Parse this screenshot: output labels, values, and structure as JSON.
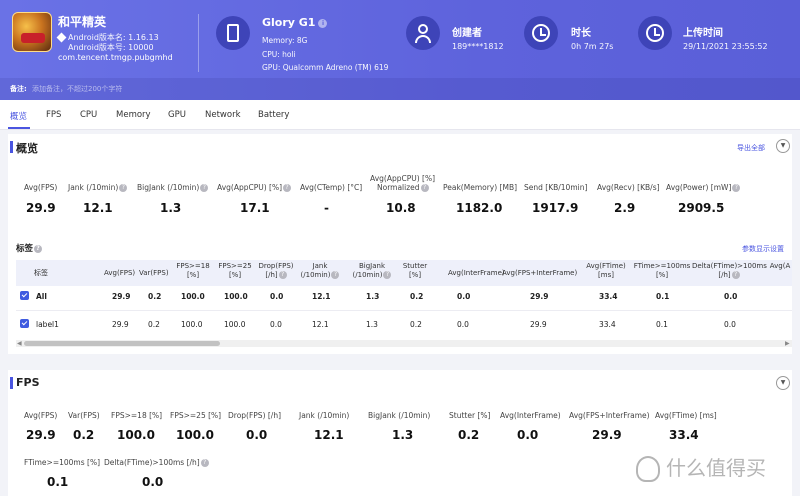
{
  "app": {
    "name": "和平精英",
    "version_name": "Android版本名: 1.16.13",
    "version_code": "Android版本号: 10000",
    "package": "com.tencent.tmgp.pubgmhd"
  },
  "device": {
    "title": "Glory G1",
    "memory": "Memory: 8G",
    "cpu": "CPU: holi",
    "gpu": "GPU: Qualcomm Adreno (TM) 619"
  },
  "creator": {
    "label": "创建者",
    "value": "189****1812"
  },
  "duration": {
    "label": "时长",
    "value": "0h 7m 27s"
  },
  "upload": {
    "label": "上传时间",
    "value": "29/11/2021 23:55:52"
  },
  "note": {
    "label": "备注:",
    "placeholder": "添加备注，不超过200个字符"
  },
  "tabs": [
    "概览",
    "FPS",
    "CPU",
    "Memory",
    "GPU",
    "Network",
    "Battery"
  ],
  "overview": {
    "title": "概览",
    "export_label": "导出全部",
    "stats": [
      {
        "label": "Avg(FPS)",
        "value": "29.9"
      },
      {
        "label": "Jank (/10min)",
        "value": "12.1"
      },
      {
        "label": "BigJank (/10min)",
        "value": "1.3"
      },
      {
        "label": "Avg(AppCPU) [%]",
        "value": "17.1"
      },
      {
        "label": "Avg(CTemp) [°C]",
        "value": "-"
      },
      {
        "label": "Avg(AppCPU) [%]",
        "label2": "Normalized",
        "value": "10.8"
      },
      {
        "label": "Peak(Memory) [MB]",
        "value": "1182.0"
      },
      {
        "label": "Send [KB/10min]",
        "value": "1917.9"
      },
      {
        "label": "Avg(Recv) [KB/s]",
        "value": "2.9"
      },
      {
        "label": "Avg(Power) [mW]",
        "value": "2909.5"
      }
    ]
  },
  "tags": {
    "title": "标签",
    "settings_label": "参数显示设置",
    "columns": [
      {
        "l1": "标签"
      },
      {
        "l1": "Avg(FPS)"
      },
      {
        "l1": "Var(FPS)"
      },
      {
        "l1": "FPS>=18",
        "l2": "[%]"
      },
      {
        "l1": "FPS>=25",
        "l2": "[%]"
      },
      {
        "l1": "Drop(FPS)",
        "l2": "[/h]"
      },
      {
        "l1": "Jank",
        "l2": "(/10min)"
      },
      {
        "l1": "BigJank",
        "l2": "(/10min)"
      },
      {
        "l1": "Stutter",
        "l2": "[%]"
      },
      {
        "l1": "Avg(InterFrame)"
      },
      {
        "l1": "Avg(FPS+InterFrame)"
      },
      {
        "l1": "Avg(FTime)",
        "l2": "[ms]"
      },
      {
        "l1": "FTime>=100ms",
        "l2": "[%]"
      },
      {
        "l1": "Delta(FTime)>100ms",
        "l2": "[/h]"
      },
      {
        "l1": "Avg(A"
      }
    ],
    "rows": [
      {
        "cells": [
          "All",
          "29.9",
          "0.2",
          "100.0",
          "100.0",
          "0.0",
          "12.1",
          "1.3",
          "0.2",
          "0.0",
          "29.9",
          "33.4",
          "0.1",
          "0.0"
        ]
      },
      {
        "cells": [
          "label1",
          "29.9",
          "0.2",
          "100.0",
          "100.0",
          "0.0",
          "12.1",
          "1.3",
          "0.2",
          "0.0",
          "29.9",
          "33.4",
          "0.1",
          "0.0"
        ]
      }
    ]
  },
  "fps": {
    "title": "FPS",
    "stats": [
      {
        "label": "Avg(FPS)",
        "value": "29.9"
      },
      {
        "label": "Var(FPS)",
        "value": "0.2"
      },
      {
        "label": "FPS>=18 [%]",
        "value": "100.0"
      },
      {
        "label": "FPS>=25 [%]",
        "value": "100.0"
      },
      {
        "label": "Drop(FPS) [/h]",
        "value": "0.0"
      },
      {
        "label": "Jank (/10min)",
        "value": "12.1"
      },
      {
        "label": "BigJank (/10min)",
        "value": "1.3"
      },
      {
        "label": "Stutter [%]",
        "value": "0.2"
      },
      {
        "label": "Avg(InterFrame)",
        "value": "0.0"
      },
      {
        "label": "Avg(FPS+InterFrame)",
        "value": "29.9"
      },
      {
        "label": "Avg(FTime) [ms]",
        "value": "33.4"
      },
      {
        "label": "FTime>=100ms [%]",
        "value": "0.1"
      },
      {
        "label": "Delta(FTime)>100ms [/h]",
        "value": "0.0"
      }
    ]
  },
  "watermark": "什么值得买",
  "icons": {
    "app": "game-app-icon",
    "device": "phone-icon",
    "creator": "user-icon",
    "duration": "clock-icon",
    "upload": "history-icon",
    "help": "help-icon",
    "collapse": "chevron-down-icon",
    "checkbox": "checkbox-checked-icon"
  },
  "colors": {
    "header": "#5e63dc",
    "accent": "#4a55e0",
    "checkbox": "#3f5be0"
  }
}
